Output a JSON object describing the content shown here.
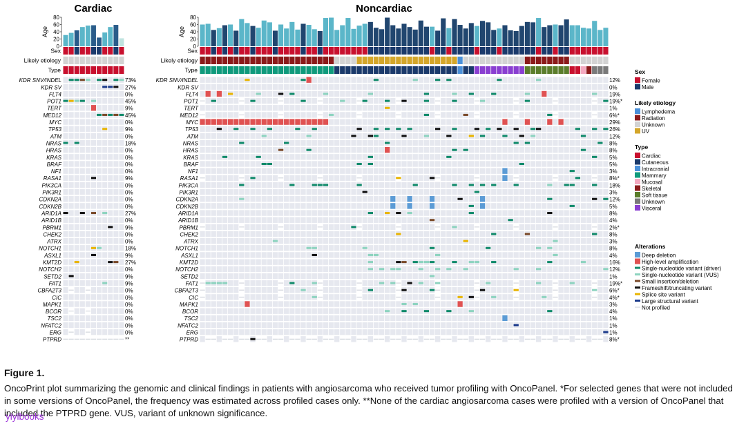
{
  "panels": {
    "cardiac": {
      "title": "Cardiac",
      "n": 11,
      "sex": [
        0,
        0,
        1,
        0,
        0,
        1,
        1,
        0,
        0,
        1,
        0
      ],
      "age": [
        31,
        37,
        44,
        53,
        57,
        58,
        24,
        38,
        53,
        59,
        22
      ]
    },
    "noncardiac": {
      "title": "Noncardiac",
      "n": 73
    }
  },
  "age_axis": {
    "label": "Age",
    "ticks": [
      "80",
      "60",
      "40",
      "20",
      "0"
    ]
  },
  "track_labels": {
    "sex": "Sex",
    "etiology": "Likely etiology",
    "type": "Type"
  },
  "genes": [
    "KDR SNV/INDEL",
    "KDR SV",
    "FLT4",
    "POT1",
    "TERT",
    "MED12",
    "MYC",
    "TP53",
    "ATM",
    "NRAS",
    "HRAS",
    "KRAS",
    "BRAF",
    "NF1",
    "RASA1",
    "PIK3CA",
    "PIK3R1",
    "CDKN2A",
    "CDKN2B",
    "ARID1A",
    "ARID1B",
    "PBRM1",
    "CHEK2",
    "ATRX",
    "NOTCH1",
    "ASXL1",
    "KMT2D",
    "NOTCH2",
    "SETD2",
    "FAT1",
    "CBFA2T3",
    "CIC",
    "MAPK1",
    "BCOR",
    "TSC2",
    "NFATC2",
    "ERG",
    "PTPRD"
  ],
  "cardiac_pct": [
    "73%",
    "27%",
    "0%",
    "45%",
    "9%",
    "45%",
    "0%",
    "9%",
    "0%",
    "18%",
    "0%",
    "0%",
    "0%",
    "0%",
    "9%",
    "0%",
    "0%",
    "0%",
    "0%",
    "27%",
    "0%",
    "9%",
    "0%",
    "0%",
    "18%",
    "9%",
    "27%",
    "0%",
    "9%",
    "9%",
    "0%",
    "0%",
    "0%",
    "0%",
    "0%",
    "0%",
    "0%",
    "**"
  ],
  "noncardiac_pct": [
    "12%",
    "0%",
    "19%",
    "19%*",
    "1%",
    "6%*",
    "29%",
    "26%",
    "12%",
    "8%",
    "8%",
    "5%",
    "5%",
    "3%",
    "8%*",
    "18%",
    "3%",
    "12%",
    "5%",
    "8%",
    "4%",
    "2%*",
    "8%",
    "3%",
    "8%",
    "4%",
    "16%",
    "12%",
    "1%",
    "19%*",
    "6%*",
    "4%*",
    "3%",
    "4%",
    "1%",
    "1%",
    "1%",
    "8%*"
  ],
  "legend": {
    "sex": {
      "title": "Sex",
      "items": [
        {
          "label": "Female",
          "color": "#c8102e"
        },
        {
          "label": "Male",
          "color": "#1b3a6b"
        }
      ]
    },
    "etiology": {
      "title": "Likely etiology",
      "items": [
        {
          "label": "Lymphedema",
          "color": "#4a90d9"
        },
        {
          "label": "Radiation",
          "color": "#8b1a1a"
        },
        {
          "label": "Unknown",
          "color": "#d3d3d3"
        },
        {
          "label": "UV",
          "color": "#d4a62a"
        }
      ]
    },
    "type": {
      "title": "Type",
      "items": [
        {
          "label": "Cardiac",
          "color": "#c8102e"
        },
        {
          "label": "Cutaneous",
          "color": "#1b3a6b"
        },
        {
          "label": "Intracranial",
          "color": "#4a90d9"
        },
        {
          "label": "Mammary",
          "color": "#0f9a7c"
        },
        {
          "label": "Mucosal",
          "color": "#f4a9c0"
        },
        {
          "label": "Skeletal",
          "color": "#8b1a1a"
        },
        {
          "label": "Soft tissue",
          "color": "#5b7d2b"
        },
        {
          "label": "Unknown",
          "color": "#7a7a7a"
        },
        {
          "label": "Visceral",
          "color": "#8a3fd1"
        }
      ]
    },
    "alterations": {
      "title": "Alterations",
      "items": [
        {
          "label": "Deep deletion",
          "color": "#5b9bd5",
          "kind": "box"
        },
        {
          "label": "High-level amplification",
          "color": "#e05252",
          "kind": "box"
        },
        {
          "label": "Single-nucleotide variant (driver)",
          "color": "#108a6a",
          "kind": "bar"
        },
        {
          "label": "Single-nucleotide variant (VUS)",
          "color": "#8dd3bf",
          "kind": "bar"
        },
        {
          "label": "Small insertion/deletion",
          "color": "#7a4a2a",
          "kind": "bar"
        },
        {
          "label": "Frameshift/truncating variant",
          "color": "#111111",
          "kind": "bar"
        },
        {
          "label": "Splice site variant",
          "color": "#e8b400",
          "kind": "bar"
        },
        {
          "label": "Large structural variant",
          "color": "#1b3a8b",
          "kind": "bar"
        },
        {
          "label": "Not profiled",
          "color": "#c9cdd6",
          "kind": "line"
        }
      ]
    }
  },
  "caption": {
    "title": "Figure 1.",
    "text": "OncoPrint plot summarizing the genomic and clinical findings in patients with angiosarcoma who received tumor profiling with OncoPanel. *For selected genes that were not included in some versions of OncoPanel, the frequency was estimated across profiled cases only. **None of the cardiac angiosarcoma cases were profiled with a version of OncoPanel that included the PTPRD gene. VUS, variant of unknown significance."
  },
  "watermark": "yiyibooks"
}
